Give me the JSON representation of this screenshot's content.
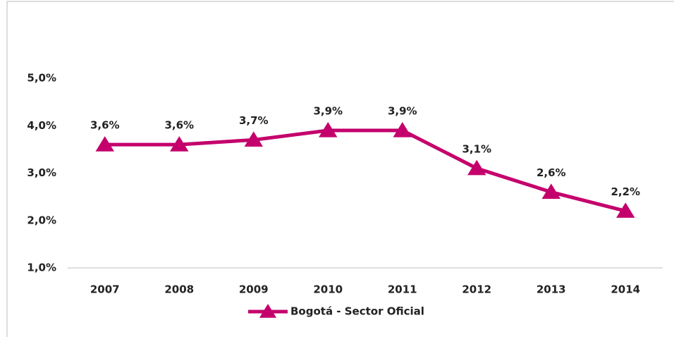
{
  "chart_data": {
    "type": "line",
    "categories": [
      "2007",
      "2008",
      "2009",
      "2010",
      "2011",
      "2012",
      "2013",
      "2014"
    ],
    "series": [
      {
        "name": "Bogotá - Sector Oficial",
        "color": "#c4006c",
        "values": [
          3.6,
          3.6,
          3.7,
          3.9,
          3.9,
          3.1,
          2.6,
          2.2
        ],
        "value_labels": [
          "3,6%",
          "3,6%",
          "3,7%",
          "3,9%",
          "3,9%",
          "3,1%",
          "2,6%",
          "2,2%"
        ]
      }
    ],
    "ylim": [
      1,
      5
    ],
    "yticks": [
      {
        "value": 1,
        "label": "1,0%"
      },
      {
        "value": 2,
        "label": "2,0%"
      },
      {
        "value": 3,
        "label": "3,0%"
      },
      {
        "value": 4,
        "label": "4,0%"
      },
      {
        "value": 5,
        "label": "5,0%"
      }
    ],
    "grid": false,
    "legend": "bottom"
  }
}
